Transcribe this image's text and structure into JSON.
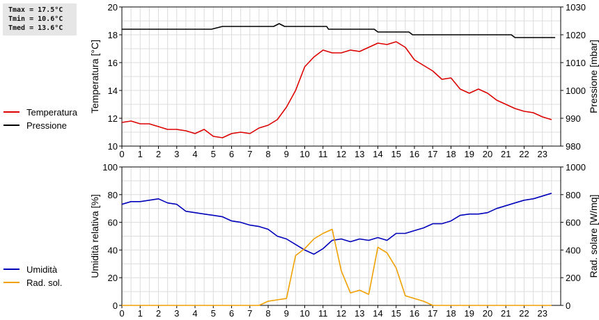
{
  "stats": [
    "Tmax = 17.5°C",
    "Tmin = 10.6°C",
    "Tmed = 13.6°C"
  ],
  "x_ticks": [
    "0",
    "1",
    "2",
    "3",
    "4",
    "5",
    "6",
    "7",
    "8",
    "9",
    "10",
    "11",
    "12",
    "13",
    "14",
    "15",
    "16",
    "17",
    "18",
    "19",
    "20",
    "21",
    "22",
    "23"
  ],
  "chart_data": [
    {
      "type": "line",
      "xlim": [
        0,
        24
      ],
      "ylabel": "Temperatura [°C]",
      "ylim": [
        10,
        20
      ],
      "y_ticks": [
        "10",
        "12",
        "14",
        "16",
        "18",
        "20"
      ],
      "ylabel_right": "Pressione [mbar]",
      "ylim_right": [
        980,
        1030
      ],
      "y_ticks_right": [
        "980",
        "990",
        "1000",
        "1010",
        "1020",
        "1030"
      ],
      "grid": true,
      "legend_position": "left",
      "series": [
        {
          "name": "Temperatura",
          "color": "#dd0000",
          "axis": "left",
          "x": [
            0,
            0.5,
            1,
            1.5,
            2,
            2.5,
            3,
            3.5,
            4,
            4.5,
            5,
            5.5,
            6,
            6.5,
            7,
            7.5,
            8,
            8.5,
            9,
            9.5,
            10,
            10.5,
            11,
            11.5,
            12,
            12.5,
            13,
            13.5,
            14,
            14.5,
            15,
            15.5,
            16,
            16.5,
            17,
            17.5,
            18,
            18.5,
            19,
            19.5,
            20,
            20.5,
            21,
            21.5,
            22,
            22.5,
            23,
            23.5
          ],
          "values": [
            11.7,
            11.8,
            11.6,
            11.6,
            11.4,
            11.2,
            11.2,
            11.1,
            10.9,
            11.2,
            10.7,
            10.6,
            10.9,
            11.0,
            10.9,
            11.3,
            11.5,
            11.9,
            12.8,
            14.0,
            15.7,
            16.4,
            16.9,
            16.7,
            16.7,
            16.9,
            16.8,
            17.1,
            17.4,
            17.3,
            17.5,
            17.1,
            16.2,
            15.8,
            15.4,
            14.8,
            14.9,
            14.1,
            13.8,
            14.1,
            13.8,
            13.3,
            13.0,
            12.7,
            12.5,
            12.4,
            12.1,
            11.9
          ]
        },
        {
          "name": "Pressione",
          "color": "#000000",
          "axis": "right",
          "x": [
            0,
            4.9,
            5.5,
            8.3,
            8.6,
            8.9,
            11.2,
            11.3,
            13.8,
            14.0,
            15.7,
            15.9,
            21.3,
            21.5,
            23.7
          ],
          "values": [
            1022,
            1022,
            1023,
            1023,
            1024,
            1023,
            1023,
            1022,
            1022,
            1021,
            1021,
            1020,
            1020,
            1019,
            1019
          ]
        }
      ]
    },
    {
      "type": "line",
      "xlim": [
        0,
        24
      ],
      "ylabel": "Umidità relativa [%]",
      "ylim": [
        0,
        100
      ],
      "y_ticks": [
        "0",
        "20",
        "40",
        "60",
        "80",
        "100"
      ],
      "ylabel_right": "Rad. solare [W/mq]",
      "ylim_right": [
        0,
        1000
      ],
      "y_ticks_right": [
        "0",
        "200",
        "400",
        "600",
        "800",
        "1000"
      ],
      "grid": true,
      "legend_position": "left",
      "series": [
        {
          "name": "Umidità",
          "color": "#0000bb",
          "axis": "left",
          "x": [
            0,
            0.5,
            1,
            1.5,
            2,
            2.5,
            3,
            3.5,
            4,
            4.5,
            5,
            5.5,
            6,
            6.5,
            7,
            7.5,
            8,
            8.5,
            9,
            9.5,
            10,
            10.5,
            11,
            11.5,
            12,
            12.5,
            13,
            13.5,
            14,
            14.5,
            15,
            15.5,
            16,
            16.5,
            17,
            17.5,
            18,
            18.5,
            19,
            19.5,
            20,
            20.5,
            21,
            21.5,
            22,
            22.5,
            23,
            23.5
          ],
          "values": [
            73,
            75,
            75,
            76,
            77,
            74,
            73,
            68,
            67,
            66,
            65,
            64,
            61,
            60,
            58,
            57,
            55,
            50,
            48,
            44,
            40,
            37,
            41,
            47,
            48,
            46,
            48,
            47,
            49,
            47,
            52,
            52,
            54,
            56,
            59,
            59,
            61,
            65,
            66,
            66,
            67,
            70,
            72,
            74,
            76,
            77,
            79,
            81
          ]
        },
        {
          "name": "Rad. sol.",
          "color": "#f0a000",
          "axis": "right",
          "x": [
            0,
            7.5,
            8,
            8.5,
            9,
            9.5,
            10,
            10.5,
            11,
            11.5,
            12,
            12.5,
            13,
            13.5,
            14,
            14.5,
            15,
            15.5,
            16,
            16.5,
            17,
            23.5
          ],
          "values": [
            0,
            0,
            30,
            40,
            50,
            360,
            410,
            480,
            520,
            550,
            250,
            90,
            110,
            80,
            420,
            380,
            270,
            70,
            50,
            30,
            0,
            0
          ]
        }
      ]
    }
  ]
}
